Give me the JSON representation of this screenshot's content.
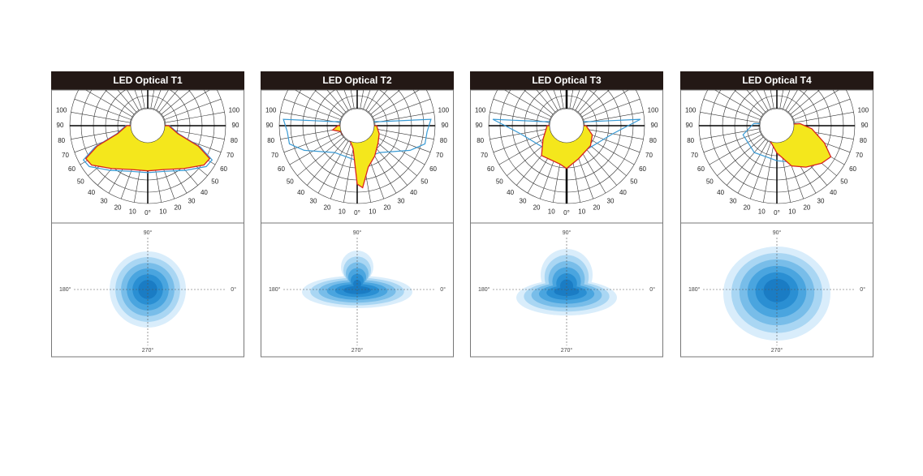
{
  "panels": [
    {
      "title": "LED Optical T1",
      "angle_labels": [
        "100",
        "90",
        "80",
        "70",
        "60",
        "50",
        "40",
        "30",
        "20",
        "10",
        "0°",
        "10",
        "20",
        "30",
        "40",
        "50",
        "60",
        "70",
        "80",
        "90",
        "100"
      ],
      "iso_labels": [
        "90°",
        "180°",
        "0°",
        "270°"
      ]
    },
    {
      "title": "LED Optical T2",
      "angle_labels": [
        "100",
        "90",
        "80",
        "70",
        "60",
        "50",
        "40",
        "30",
        "20",
        "10",
        "0°",
        "10",
        "20",
        "30",
        "40",
        "50",
        "60",
        "70",
        "80",
        "90",
        "100"
      ],
      "iso_labels": [
        "90°",
        "180°",
        "0°",
        "270°"
      ]
    },
    {
      "title": "LED Optical T3",
      "angle_labels": [
        "100",
        "90",
        "80",
        "70",
        "60",
        "50",
        "40",
        "30",
        "20",
        "10",
        "0°",
        "10",
        "20",
        "30",
        "40",
        "50",
        "60",
        "70",
        "80",
        "90",
        "100"
      ],
      "iso_labels": [
        "90°",
        "180°",
        "0°",
        "270°"
      ]
    },
    {
      "title": "LED Optical T4",
      "angle_labels": [
        "100",
        "90",
        "80",
        "70",
        "60",
        "50",
        "40",
        "30",
        "20",
        "10",
        "0°",
        "10",
        "20",
        "30",
        "40",
        "50",
        "60",
        "70",
        "80",
        "90",
        "100"
      ],
      "iso_labels": [
        "90°",
        "180°",
        "0°",
        "270°"
      ]
    }
  ]
}
